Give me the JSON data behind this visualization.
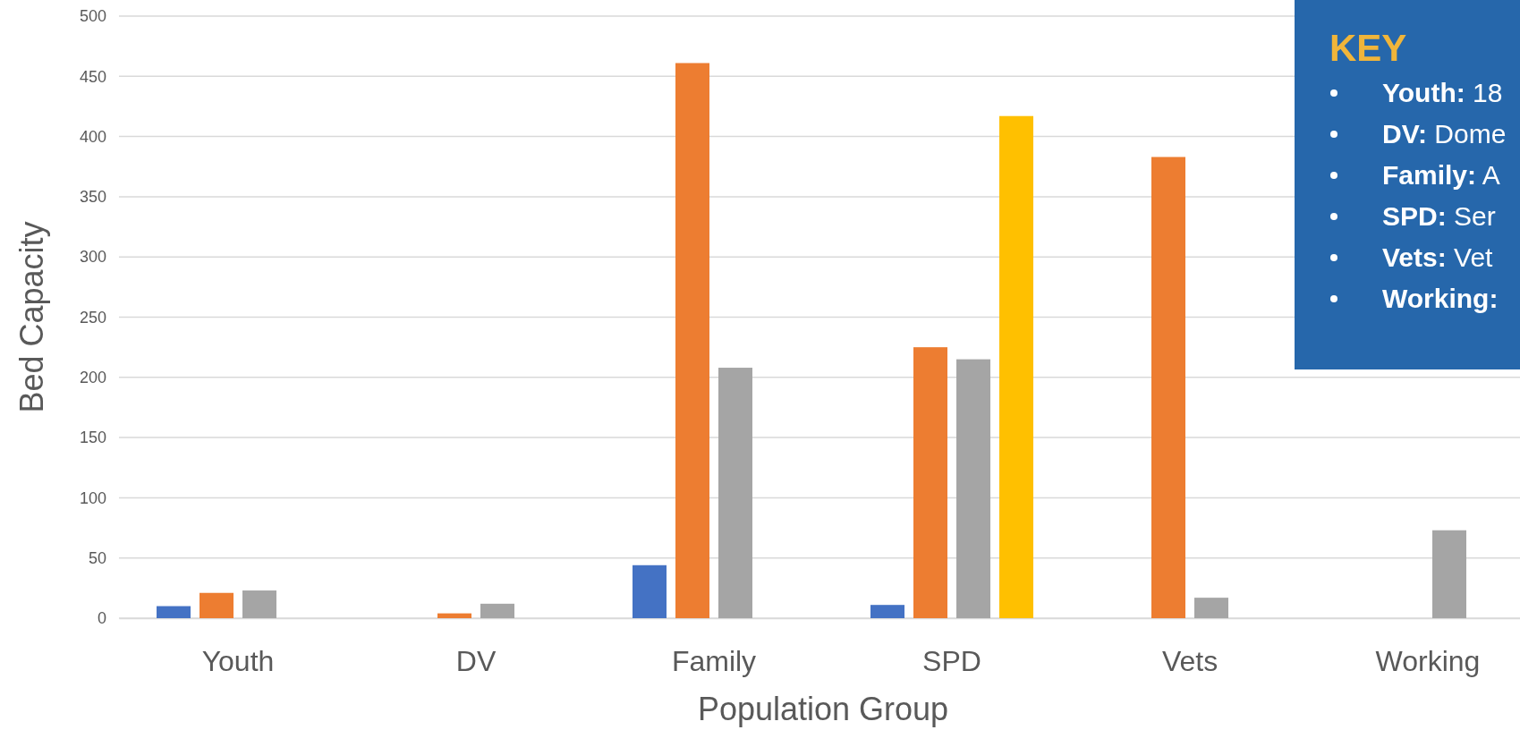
{
  "chart_data": {
    "type": "bar",
    "xlabel": "Population Group",
    "ylabel": "Bed Capacity",
    "categories": [
      "Youth",
      "DV",
      "Family",
      "SPD",
      "Vets",
      "Working"
    ],
    "series": [
      {
        "color": "#4472c4",
        "values": [
          10,
          null,
          44,
          11,
          null,
          null
        ]
      },
      {
        "color": "#ed7d31",
        "values": [
          21,
          4,
          461,
          225,
          383,
          null
        ]
      },
      {
        "color": "#a5a5a5",
        "values": [
          23,
          12,
          208,
          215,
          17,
          73
        ]
      },
      {
        "color": "#ffc000",
        "values": [
          null,
          null,
          null,
          417,
          null,
          null
        ]
      }
    ],
    "ylim": [
      0,
      500
    ],
    "yticks": [
      0,
      50,
      100,
      150,
      200,
      250,
      300,
      350,
      400,
      450,
      500
    ],
    "grid": "y",
    "annotations": [
      "KEY",
      "Youth: 18",
      "DV: Dome",
      "Family: A",
      "SPD: Ser",
      "Vets: Vet",
      "Working:"
    ]
  }
}
